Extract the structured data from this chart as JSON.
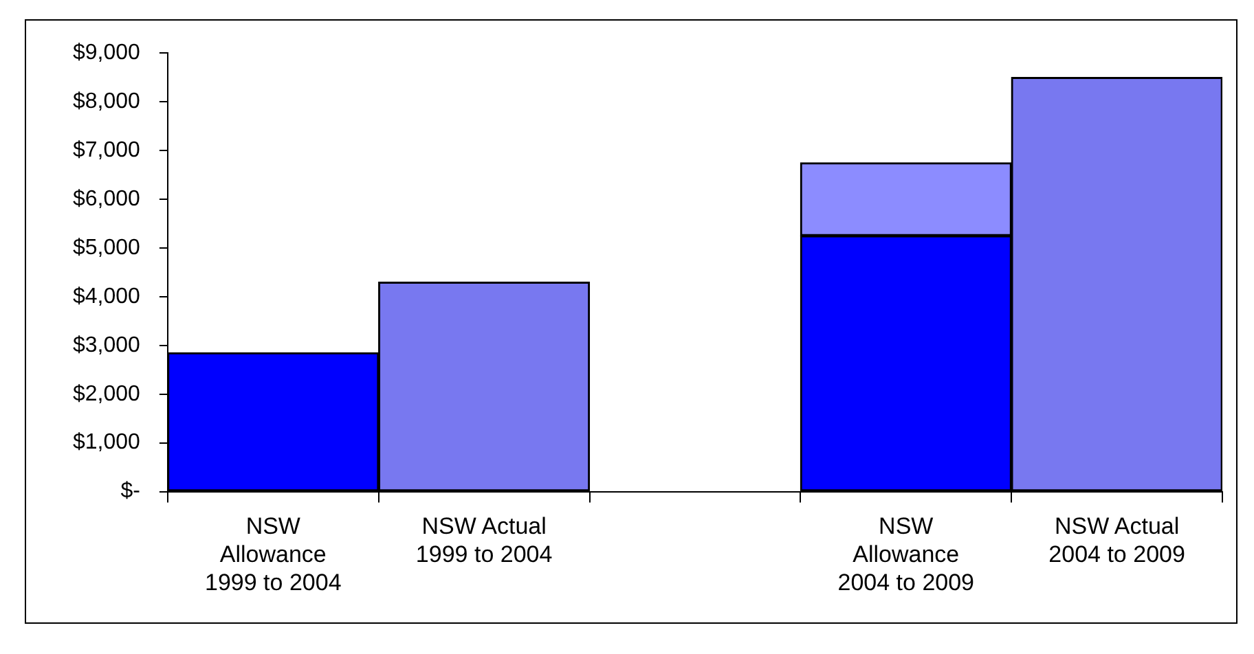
{
  "chart_data": {
    "type": "bar",
    "stacked": true,
    "categories": [
      "NSW Allowance 1999 to 2004",
      "NSW Actual 1999 to 2004",
      null,
      "NSW Allowance 2004 to 2009",
      "NSW Actual 2004 to 2009"
    ],
    "series": [
      {
        "color": "#0000ff",
        "values": [
          2850,
          null,
          null,
          5250,
          null
        ]
      },
      {
        "color": "#8c8cff",
        "values": [
          null,
          null,
          null,
          1500,
          null
        ]
      },
      {
        "color": "#7878f0",
        "values": [
          null,
          4300,
          null,
          null,
          8500
        ]
      }
    ],
    "ylim": [
      0,
      9000
    ],
    "yticks": [
      {
        "value": 0,
        "label": "$-"
      },
      {
        "value": 1000,
        "label": "$1,000"
      },
      {
        "value": 2000,
        "label": "$2,000"
      },
      {
        "value": 3000,
        "label": "$3,000"
      },
      {
        "value": 4000,
        "label": "$4,000"
      },
      {
        "value": 5000,
        "label": "$5,000"
      },
      {
        "value": 6000,
        "label": "$6,000"
      },
      {
        "value": 7000,
        "label": "$7,000"
      },
      {
        "value": 8000,
        "label": "$8,000"
      },
      {
        "value": 9000,
        "label": "$9,000"
      }
    ],
    "grid": false,
    "legend": false
  }
}
